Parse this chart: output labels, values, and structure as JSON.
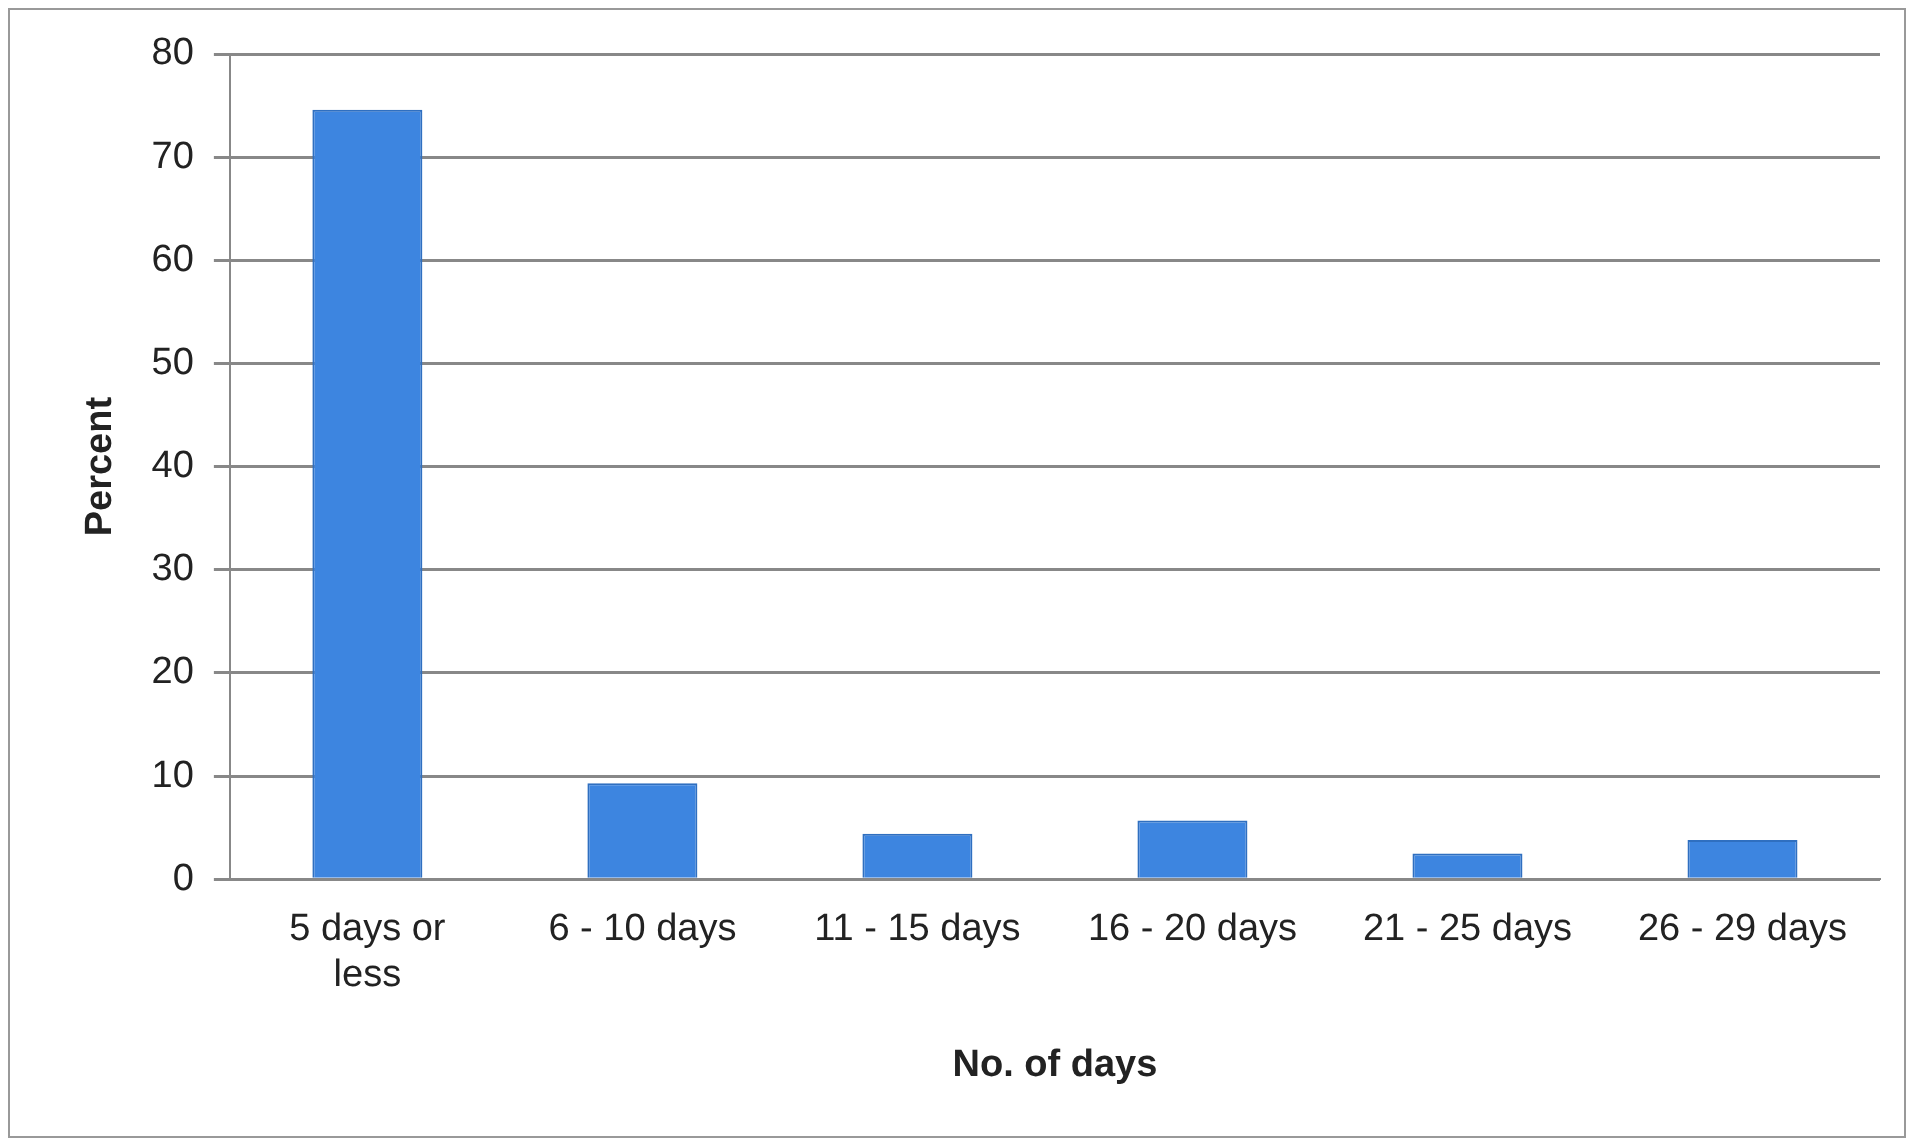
{
  "chart_data": {
    "type": "bar",
    "xlabel": "No. of days",
    "ylabel": "Percent",
    "categories": [
      "5 days or less",
      "6 - 10 days",
      "11 - 15 days",
      "16 - 20 days",
      "21 - 25 days",
      "26 - 29 days"
    ],
    "values": [
      74.6,
      9.3,
      4.4,
      5.7,
      2.5,
      3.8
    ],
    "color": "#3d85e0",
    "ylim": [
      0,
      80
    ],
    "yticks": [
      0,
      10,
      20,
      30,
      40,
      50,
      60,
      70,
      80
    ],
    "grid": "y",
    "legend": false
  }
}
